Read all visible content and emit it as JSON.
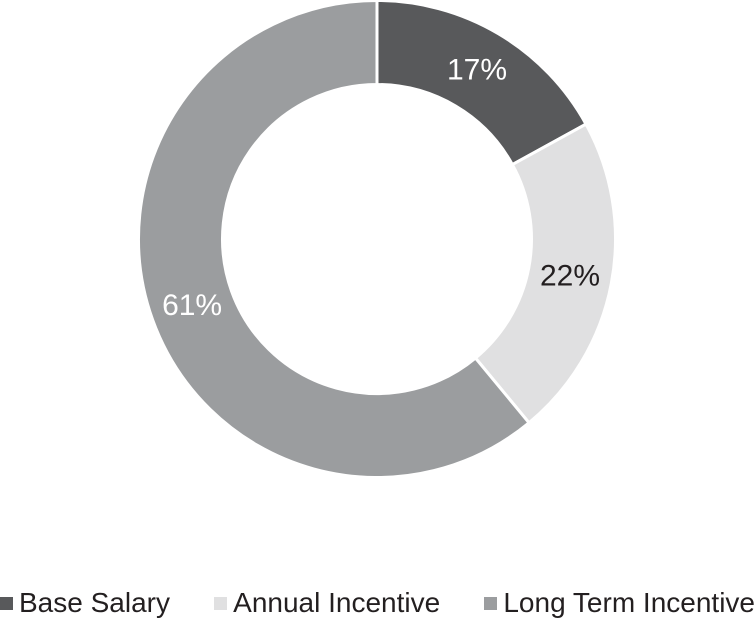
{
  "page": {
    "background_color": "#ffffff"
  },
  "chart_data": {
    "type": "pie",
    "subtype": "donut",
    "title": "",
    "categories": [
      "Base Salary",
      "Annual Incentive",
      "Long Term Incentive"
    ],
    "values": [
      17,
      22,
      61
    ],
    "slice_labels": [
      "17%",
      "22%",
      "61%"
    ],
    "slice_colors": [
      "#58595b",
      "#e0e0e1",
      "#9b9d9f"
    ],
    "slice_label_colors": [
      "#ffffff",
      "#231f20",
      "#ffffff"
    ],
    "separator_color": "#ffffff",
    "start_angle_deg": 0,
    "direction": "clockwise",
    "inner_radius_ratio": 0.655,
    "legend_position": "bottom",
    "legend": [
      {
        "label": "Base Salary",
        "color": "#58595b"
      },
      {
        "label": "Annual Incentive",
        "color": "#e0e0e1"
      },
      {
        "label": "Long Term Incentive",
        "color": "#9b9d9f"
      }
    ]
  }
}
